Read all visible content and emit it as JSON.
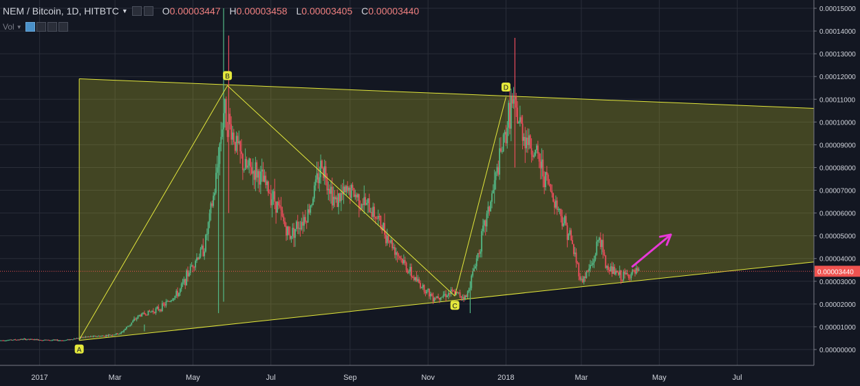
{
  "header": {
    "symbol": "NEM / Bitcoin, 1D, HITBTC",
    "o_label": "O",
    "o_value": "0.00003447",
    "h_label": "H",
    "h_value": "0.00003458",
    "l_label": "L",
    "l_value": "0.00003405",
    "c_label": "C",
    "c_value": "0.00003440",
    "vol_label": "Vol",
    "caret_icon": "caret-down-icon",
    "icons": [
      "settings-icon",
      "eye-icon",
      "gear-icon",
      "plus-icon",
      "close-icon"
    ]
  },
  "chart_data": {
    "type": "candlestick",
    "title": "NEM / Bitcoin, 1D, HITBTC",
    "y_axis": {
      "ticks": [
        0.0,
        1e-05,
        2e-05,
        3e-05,
        4e-05,
        5e-05,
        6e-05,
        7e-05,
        8e-05,
        9e-05,
        0.0001,
        0.00011,
        0.00012,
        0.00013,
        0.00014,
        0.00015
      ],
      "tick_labels": [
        "0.00000000",
        "0.00001000",
        "0.00002000",
        "0.00003000",
        "0.00004000",
        "0.00005000",
        "0.00006000",
        "0.00007000",
        "0.00008000",
        "0.00009000",
        "0.00010000",
        "0.00011000",
        "0.00012000",
        "0.00013000",
        "0.00014000",
        "0.00015000"
      ],
      "range": [
        -1.4e-06,
        1.54e-05
      ],
      "position": "right"
    },
    "x_axis": {
      "range": [
        "2016-12-01",
        "2018-08-30"
      ],
      "ticks": [
        {
          "date": "2017-01-01",
          "label": "2017"
        },
        {
          "date": "2017-03-01",
          "label": "Mar"
        },
        {
          "date": "2017-05-01",
          "label": "May"
        },
        {
          "date": "2017-07-01",
          "label": "Jul"
        },
        {
          "date": "2017-09-01",
          "label": "Sep"
        },
        {
          "date": "2017-11-01",
          "label": "Nov"
        },
        {
          "date": "2018-01-01",
          "label": "2018"
        },
        {
          "date": "2018-03-01",
          "label": "Mar"
        },
        {
          "date": "2018-05-01",
          "label": "May"
        },
        {
          "date": "2018-07-01",
          "label": "Jul"
        }
      ]
    },
    "grid": true,
    "colors": {
      "background": "#131722",
      "grid": "#2a2e39",
      "up": "#53b987",
      "down": "#eb4d5c",
      "pattern_line": "#e4e83c",
      "pattern_fill": "rgba(190,190,40,0.28)",
      "arrow": "#e838d8",
      "last_price": "#ef5350"
    },
    "price_path": [
      [
        "2016-12-01",
        4e-06
      ],
      [
        "2016-12-20",
        4.5e-06
      ],
      [
        "2017-01-05",
        4.2e-06
      ],
      [
        "2017-01-20",
        4e-06
      ],
      [
        "2017-02-05",
        5.5e-06
      ],
      [
        "2017-02-20",
        6e-06
      ],
      [
        "2017-03-05",
        7e-06
      ],
      [
        "2017-03-20",
        1.5e-05
      ],
      [
        "2017-04-05",
        1.8e-05
      ],
      [
        "2017-04-20",
        2.5e-05
      ],
      [
        "2017-05-01",
        3.8e-05
      ],
      [
        "2017-05-10",
        4.5e-05
      ],
      [
        "2017-05-18",
        7e-05
      ],
      [
        "2017-05-25",
        0.000105
      ],
      [
        "2017-06-01",
        9.5e-05
      ],
      [
        "2017-06-10",
        8e-05
      ],
      [
        "2017-06-20",
        7.8e-05
      ],
      [
        "2017-07-05",
        6.5e-05
      ],
      [
        "2017-07-15",
        5e-05
      ],
      [
        "2017-07-30",
        6e-05
      ],
      [
        "2017-08-10",
        8.2e-05
      ],
      [
        "2017-08-20",
        6.5e-05
      ],
      [
        "2017-09-01",
        7e-05
      ],
      [
        "2017-09-20",
        6e-05
      ],
      [
        "2017-10-05",
        4.5e-05
      ],
      [
        "2017-10-20",
        3.2e-05
      ],
      [
        "2017-11-05",
        2.3e-05
      ],
      [
        "2017-11-20",
        2.5e-05
      ],
      [
        "2017-12-01",
        2.3e-05
      ],
      [
        "2017-12-10",
        4.2e-05
      ],
      [
        "2017-12-22",
        7e-05
      ],
      [
        "2018-01-01",
        9.6e-05
      ],
      [
        "2018-01-05",
        0.000108
      ],
      [
        "2018-01-15",
        9.5e-05
      ],
      [
        "2018-01-25",
        8.5e-05
      ],
      [
        "2018-02-05",
        7e-05
      ],
      [
        "2018-02-20",
        5e-05
      ],
      [
        "2018-03-01",
        3e-05
      ],
      [
        "2018-03-10",
        3.8e-05
      ],
      [
        "2018-03-15",
        5e-05
      ],
      [
        "2018-03-20",
        3.7e-05
      ],
      [
        "2018-04-01",
        3.2e-05
      ],
      [
        "2018-04-15",
        3.4e-05
      ]
    ],
    "spikes": [
      {
        "date": "2017-03-24",
        "high": 1.1e-05,
        "low": 8e-06
      },
      {
        "date": "2017-05-21",
        "high": 8.9e-05,
        "low": 1.6e-05
      },
      {
        "date": "2017-05-25",
        "high": 0.00015,
        "low": 2.1e-05
      },
      {
        "date": "2017-05-29",
        "high": 0.000138,
        "low": 6e-05
      },
      {
        "date": "2018-01-08",
        "high": 0.000137,
        "low": 8e-05
      },
      {
        "date": "2017-12-04",
        "high": 3e-05,
        "low": 1.6e-05
      }
    ],
    "last_price": {
      "value": 3.44e-05,
      "label": "0.00003440"
    },
    "pattern": {
      "triangle_upper": [
        [
          "2017-02-01",
          0.000119
        ],
        [
          "2018-08-30",
          0.000106
        ]
      ],
      "triangle_lower": [
        [
          "2017-02-01",
          4e-06
        ],
        [
          "2018-08-30",
          3.85e-05
        ]
      ],
      "zigzag": [
        {
          "label": "A",
          "date": "2017-02-01",
          "value": 4.3e-06
        },
        {
          "label": "B",
          "date": "2017-05-28",
          "value": 0.000116
        },
        {
          "label": "C",
          "date": "2017-11-22",
          "value": 2.35e-05
        },
        {
          "label": "D",
          "date": "2018-01-01",
          "value": 0.000111
        }
      ]
    },
    "annotation": {
      "type": "arrow",
      "from": [
        "2018-04-10",
        3.65e-05
      ],
      "to": [
        "2018-05-10",
        5.05e-05
      ]
    }
  }
}
